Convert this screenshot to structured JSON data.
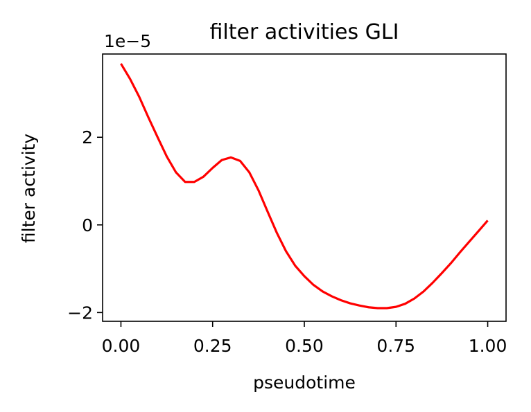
{
  "chart_data": {
    "type": "line",
    "title": "filter activities GLI",
    "xlabel": "pseudotime",
    "ylabel": "filter activity",
    "y_offset_label": "1e−5",
    "xlim": [
      -0.05,
      1.05
    ],
    "ylim": [
      -2.2,
      3.9
    ],
    "x_ticks": [
      0.0,
      0.25,
      0.5,
      0.75,
      1.0
    ],
    "x_tick_labels": [
      "0.00",
      "0.25",
      "0.50",
      "0.75",
      "1.00"
    ],
    "y_ticks": [
      -2,
      0,
      2
    ],
    "y_tick_labels": [
      "−2",
      "0",
      "2"
    ],
    "grid": false,
    "series": [
      {
        "color": "#ff0000",
        "x": [
          0.0,
          0.025,
          0.05,
          0.075,
          0.1,
          0.125,
          0.15,
          0.175,
          0.2,
          0.225,
          0.25,
          0.275,
          0.3,
          0.325,
          0.35,
          0.375,
          0.4,
          0.425,
          0.45,
          0.475,
          0.5,
          0.525,
          0.55,
          0.575,
          0.6,
          0.625,
          0.65,
          0.675,
          0.7,
          0.725,
          0.75,
          0.775,
          0.8,
          0.825,
          0.85,
          0.875,
          0.9,
          0.925,
          0.95,
          0.975,
          1.0
        ],
        "values": [
          3.68,
          3.33,
          2.92,
          2.45,
          2.0,
          1.56,
          1.2,
          0.98,
          0.98,
          1.1,
          1.3,
          1.48,
          1.54,
          1.46,
          1.2,
          0.79,
          0.3,
          -0.18,
          -0.6,
          -0.93,
          -1.17,
          -1.37,
          -1.52,
          -1.63,
          -1.72,
          -1.79,
          -1.84,
          -1.88,
          -1.9,
          -1.9,
          -1.87,
          -1.8,
          -1.68,
          -1.52,
          -1.32,
          -1.1,
          -0.87,
          -0.62,
          -0.38,
          -0.14,
          0.1
        ]
      }
    ]
  }
}
